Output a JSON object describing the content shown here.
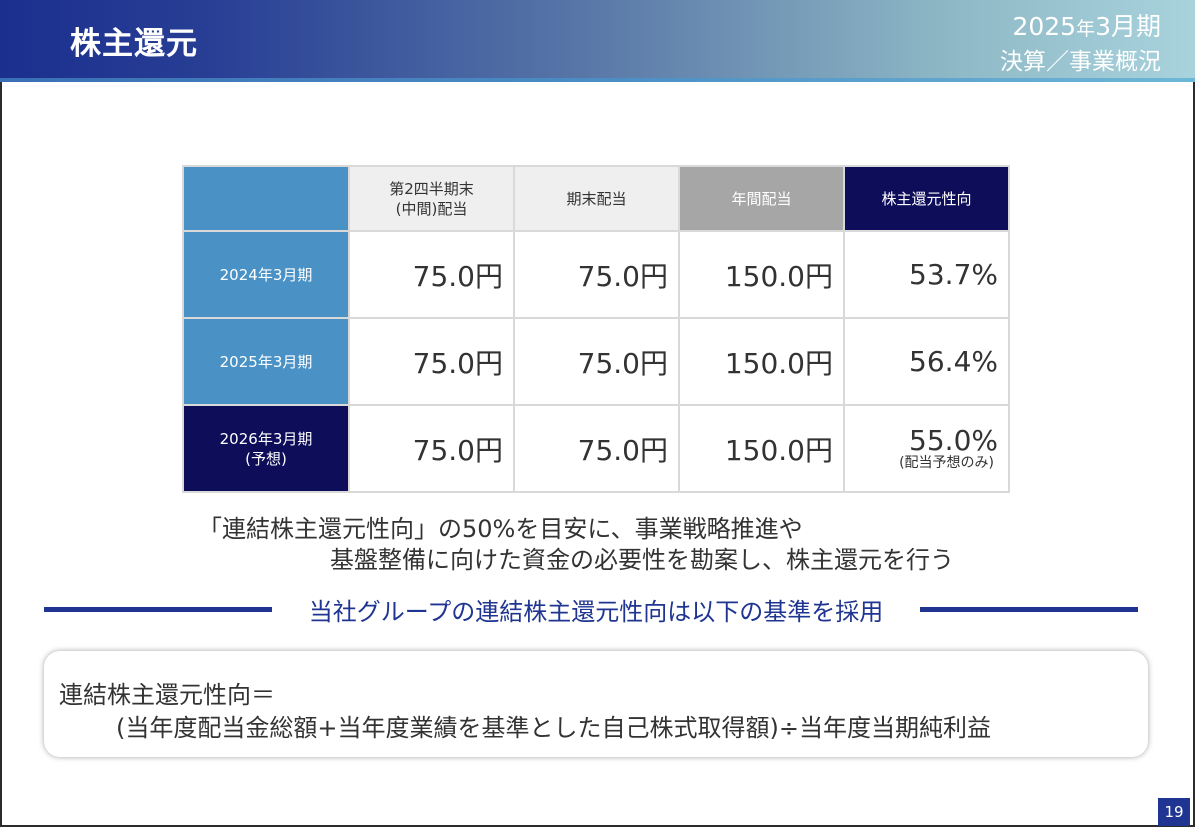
{
  "header": {
    "title": "株主還元",
    "period_year": "2025",
    "period_year_suffix": "年",
    "period_month": "3月期",
    "period_line2": "決算／事業概況"
  },
  "dividend_table": {
    "columns": [
      "第2四半期末",
      "(中間)配当",
      "期末配当",
      "年間配当",
      "株主還元性向"
    ],
    "rows": [
      {
        "label": "2024年3月期",
        "label_sub": "",
        "interim": "75.0円",
        "year_end": "75.0円",
        "annual": "150.0円",
        "payout": "53.7%",
        "payout_note": ""
      },
      {
        "label": "2025年3月期",
        "label_sub": "",
        "interim": "75.0円",
        "year_end": "75.0円",
        "annual": "150.0円",
        "payout": "56.4%",
        "payout_note": ""
      },
      {
        "label": "2026年3月期",
        "label_sub": "(予想)",
        "interim": "75.0円",
        "year_end": "75.0円",
        "annual": "150.0円",
        "payout": "55.0%",
        "payout_note": "(配当予想のみ)"
      }
    ]
  },
  "policy": {
    "line1": "「連結株主還元性向」の50%を目安に、事業戦略推進や",
    "line2": "基盤整備に向けた資金の必要性を勘案し、株主還元を行う"
  },
  "subtitle": "当社グループの連結株主還元性向は以下の基準を採用",
  "formula": {
    "line1": "連結株主還元性向＝",
    "line2": "(当年度配当金総額+当年度業績を基準とした自己株式取得額)÷当年度当期純利益"
  },
  "page_number": "19",
  "colors": {
    "navy": "#0d0d5a",
    "blue": "#4a92c6",
    "accent": "#1f3591",
    "gray": "#a6a6a6"
  }
}
